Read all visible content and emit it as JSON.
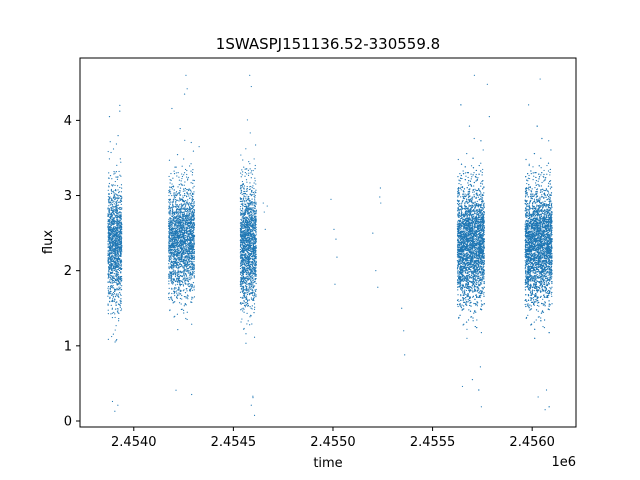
{
  "chart_data": {
    "type": "scatter",
    "title": "1SWASPJ151136.52-330559.8",
    "xlabel": "time",
    "ylabel": "flux",
    "x_offset_label": "1e6",
    "xlim": [
      2453730,
      2456220
    ],
    "ylim": [
      -0.08,
      4.83
    ],
    "x_ticks": [
      2454000,
      2454500,
      2455000,
      2455500,
      2456000
    ],
    "x_tick_labels": [
      "2.4540",
      "2.4545",
      "2.4550",
      "2.4555",
      "2.4560"
    ],
    "y_ticks": [
      0,
      1,
      2,
      3,
      4
    ],
    "y_tick_labels": [
      "0",
      "1",
      "2",
      "3",
      "4"
    ],
    "grid": false,
    "legend": "none",
    "color": "#1f77b4",
    "series": [
      {
        "clusters": [
          {
            "x_range": [
              2453870,
              2453940
            ],
            "y_center": 2.35,
            "y_spread": 0.38,
            "count": 1400
          },
          {
            "x_range": [
              2454175,
              2454305
            ],
            "y_center": 2.4,
            "y_spread": 0.36,
            "count": 2200
          },
          {
            "x_range": [
              2454535,
              2454615
            ],
            "y_center": 2.35,
            "y_spread": 0.4,
            "count": 1700
          },
          {
            "x_range": [
              2455625,
              2455760
            ],
            "y_center": 2.35,
            "y_spread": 0.38,
            "count": 3800
          },
          {
            "x_range": [
              2455965,
              2456100
            ],
            "y_center": 2.35,
            "y_spread": 0.38,
            "count": 3800
          }
        ],
        "points": [
          [
            2453893,
            0.26
          ],
          [
            2453905,
            0.13
          ],
          [
            2453920,
            0.21
          ],
          [
            2453878,
            4.05
          ],
          [
            2453930,
            4.2
          ],
          [
            2454212,
            0.41
          ],
          [
            2454268,
            4.42
          ],
          [
            2454262,
            4.6
          ],
          [
            2454255,
            4.35
          ],
          [
            2454328,
            3.65
          ],
          [
            2454590,
            0.21
          ],
          [
            2454598,
            0.33
          ],
          [
            2454582,
            4.6
          ],
          [
            2454590,
            4.45
          ],
          [
            2454650,
            2.9
          ],
          [
            2454655,
            2.78
          ],
          [
            2454670,
            2.86
          ],
          [
            2454660,
            2.55
          ],
          [
            2454990,
            2.95
          ],
          [
            2455015,
            2.42
          ],
          [
            2455020,
            2.18
          ],
          [
            2455010,
            1.82
          ],
          [
            2455005,
            2.55
          ],
          [
            2455200,
            2.5
          ],
          [
            2455215,
            2.0
          ],
          [
            2455225,
            1.78
          ],
          [
            2455235,
            2.98
          ],
          [
            2455238,
            3.1
          ],
          [
            2455240,
            2.9
          ],
          [
            2455345,
            1.5
          ],
          [
            2455355,
            1.2
          ],
          [
            2455360,
            0.88
          ],
          [
            2455650,
            0.46
          ],
          [
            2455700,
            0.55
          ],
          [
            2455740,
            0.72
          ],
          [
            2455710,
            4.6
          ],
          [
            2455775,
            4.48
          ],
          [
            2455785,
            4.05
          ],
          [
            2455985,
            3.4
          ],
          [
            2456030,
            0.32
          ],
          [
            2456065,
            0.15
          ],
          [
            2456040,
            4.55
          ]
        ]
      }
    ]
  }
}
